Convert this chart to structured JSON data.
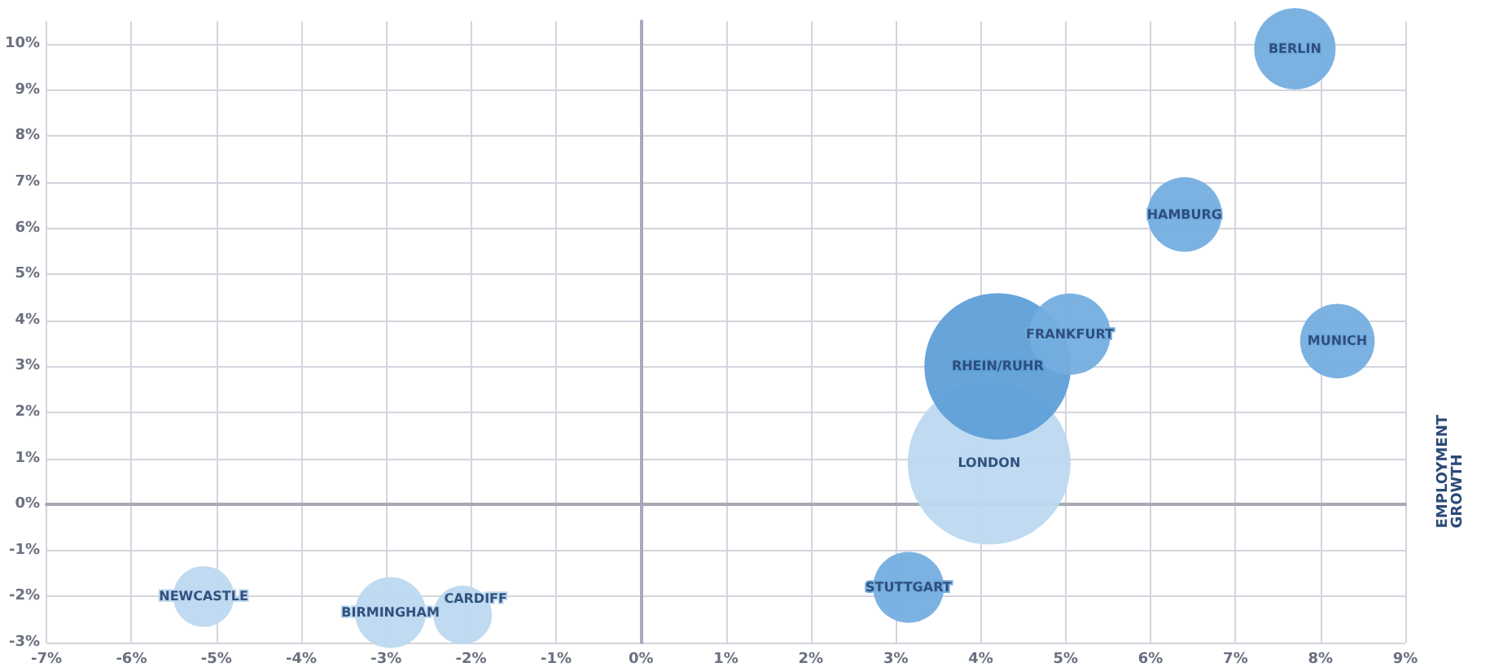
{
  "chart_data": {
    "type": "bubble",
    "ylabel": "EMPLOYMENT\nGROWTH",
    "xlim": [
      -7,
      9
    ],
    "ylim": [
      -3,
      10.5
    ],
    "xticks": [
      {
        "value": -7,
        "label": "-7%"
      },
      {
        "value": -6,
        "label": "-6%"
      },
      {
        "value": -5,
        "label": "-5%"
      },
      {
        "value": -4,
        "label": "-4%"
      },
      {
        "value": -3,
        "label": "-3%"
      },
      {
        "value": -2,
        "label": "-2%"
      },
      {
        "value": -1,
        "label": "-1%"
      },
      {
        "value": 0,
        "label": "0%"
      },
      {
        "value": 1,
        "label": "1%"
      },
      {
        "value": 2,
        "label": "2%"
      },
      {
        "value": 3,
        "label": "3%"
      },
      {
        "value": 4,
        "label": "4%"
      },
      {
        "value": 5,
        "label": "5%"
      },
      {
        "value": 6,
        "label": "6%"
      },
      {
        "value": 7,
        "label": "7%"
      },
      {
        "value": 8,
        "label": "8%"
      },
      {
        "value": 9,
        "label": "9%"
      }
    ],
    "yticks": [
      {
        "value": -3,
        "label": "-3%"
      },
      {
        "value": -2,
        "label": "-2%"
      },
      {
        "value": -1,
        "label": "-1%"
      },
      {
        "value": 0,
        "label": "0%"
      },
      {
        "value": 1,
        "label": "1%"
      },
      {
        "value": 2,
        "label": "2%"
      },
      {
        "value": 3,
        "label": "3%"
      },
      {
        "value": 4,
        "label": "4%"
      },
      {
        "value": 5,
        "label": "5%"
      },
      {
        "value": 6,
        "label": "6%"
      },
      {
        "value": 7,
        "label": "7%"
      },
      {
        "value": 8,
        "label": "8%"
      },
      {
        "value": 9,
        "label": "9%"
      },
      {
        "value": 10,
        "label": "10%"
      }
    ],
    "grid": true,
    "marker": "circle",
    "series": [
      {
        "name": "LONDON",
        "color": "#bdd9f0",
        "x": [
          4.1
        ],
        "values": [
          0.9
        ],
        "sizes": [
          1
        ]
      },
      {
        "name": "RHEIN/RUHR",
        "color": "#5f9fd8",
        "x": [
          4.2
        ],
        "values": [
          3.0
        ],
        "sizes": [
          0.81
        ]
      },
      {
        "name": "FRANKFURT",
        "color": "#74aee0",
        "x": [
          5.05
        ],
        "values": [
          3.7
        ],
        "sizes": [
          0.25
        ]
      },
      {
        "name": "BERLIN",
        "color": "#74aee0",
        "x": [
          7.7
        ],
        "values": [
          9.9
        ],
        "sizes": [
          0.25
        ]
      },
      {
        "name": "HAMBURG",
        "color": "#74aee0",
        "x": [
          6.4
        ],
        "values": [
          6.3
        ],
        "sizes": [
          0.21
        ]
      },
      {
        "name": "MUNICH",
        "color": "#74aee0",
        "x": [
          8.2
        ],
        "values": [
          3.55
        ],
        "sizes": [
          0.21
        ]
      },
      {
        "name": "STUTTGART",
        "color": "#74aee0",
        "x": [
          3.15
        ],
        "values": [
          -1.8
        ],
        "sizes": [
          0.19
        ]
      },
      {
        "name": "NEWCASTLE",
        "color": "#bdd9f0",
        "x": [
          -5.15
        ],
        "values": [
          -2.0
        ],
        "sizes": [
          0.14
        ]
      },
      {
        "name": "BIRMINGHAM",
        "color": "#bdd9f0",
        "x": [
          -2.95
        ],
        "values": [
          -2.35
        ],
        "sizes": [
          0.19
        ]
      },
      {
        "name": "CARDIFF",
        "color": "#bdd9f0",
        "x": [
          -2.1
        ],
        "values": [
          -2.4
        ],
        "sizes": [
          0.13
        ]
      }
    ]
  }
}
